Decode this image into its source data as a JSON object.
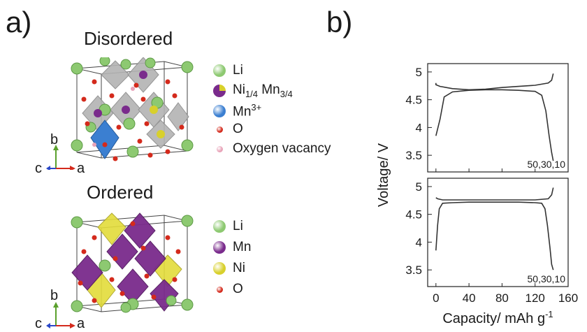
{
  "panel_a": {
    "label": "a)",
    "disordered": {
      "title": "Disordered",
      "legend": [
        {
          "label_parts": [
            [
              "Li",
              ""
            ]
          ],
          "color": "#8dc971"
        },
        {
          "label_parts": [
            [
              "Ni",
              ""
            ],
            [
              "1/4",
              "sub"
            ],
            [
              " Mn",
              ""
            ],
            [
              "3/4",
              "sub"
            ]
          ],
          "color": "#7a2b8c",
          "color2": "#d8d02c"
        },
        {
          "label_parts": [
            [
              "Mn",
              ""
            ],
            [
              "3+",
              "sup"
            ]
          ],
          "color": "#3b7fd1"
        },
        {
          "label_parts": [
            [
              "O",
              ""
            ]
          ],
          "color": "#d42a1c"
        },
        {
          "label_parts": [
            [
              "Oxygen vacancy",
              ""
            ]
          ],
          "color": "#e8a3b8"
        }
      ],
      "axes": {
        "b": "b",
        "c": "c",
        "a": "a"
      }
    },
    "ordered": {
      "title": "Ordered",
      "legend": [
        {
          "label_parts": [
            [
              "Li",
              ""
            ]
          ],
          "color": "#8dc971"
        },
        {
          "label_parts": [
            [
              "Mn",
              ""
            ]
          ],
          "color": "#7a2b8c"
        },
        {
          "label_parts": [
            [
              "Ni",
              ""
            ]
          ],
          "color": "#d8d02c"
        },
        {
          "label_parts": [
            [
              "O",
              ""
            ]
          ],
          "color": "#d42a1c"
        }
      ],
      "axes": {
        "b": "b",
        "c": "c",
        "a": "a"
      }
    }
  },
  "panel_b": {
    "label": "b)",
    "chart_data": {
      "type": "line",
      "ylabel": "Voltage/ V",
      "xlabel_main": "Capacity/ mAh g",
      "xlabel_sup": "-1",
      "xlim": [
        -10,
        160
      ],
      "xticks": [
        0,
        40,
        80,
        120,
        160
      ],
      "ylim": [
        3.2,
        5.15
      ],
      "yticks": [
        3.5,
        4,
        4.5,
        5
      ],
      "panels": [
        {
          "annotation": "50,30,10",
          "series": [
            {
              "x": [
                0,
                5,
                10,
                20,
                40,
                60,
                80,
                100,
                120,
                128,
                133,
                137,
                140,
                142
              ],
              "y": [
                3.85,
                4.15,
                4.55,
                4.64,
                4.67,
                4.68,
                4.68,
                4.67,
                4.65,
                4.58,
                4.3,
                3.85,
                3.55,
                3.4
              ]
            },
            {
              "x": [
                142,
                140,
                136,
                120,
                100,
                80,
                60,
                40,
                20,
                5,
                0,
                0
              ],
              "y": [
                4.97,
                4.85,
                4.8,
                4.76,
                4.74,
                4.72,
                4.69,
                4.68,
                4.7,
                4.74,
                4.77,
                4.8
              ]
            }
          ]
        },
        {
          "annotation": "50,30,10",
          "series": [
            {
              "x": [
                0,
                2,
                4,
                8,
                20,
                40,
                60,
                80,
                100,
                120,
                128,
                132,
                135,
                138,
                140,
                142
              ],
              "y": [
                3.85,
                4.3,
                4.6,
                4.7,
                4.71,
                4.72,
                4.72,
                4.72,
                4.72,
                4.71,
                4.7,
                4.6,
                4.3,
                3.9,
                3.6,
                3.5
              ]
            },
            {
              "x": [
                142,
                140,
                136,
                120,
                80,
                40,
                8,
                2,
                0
              ],
              "y": [
                4.98,
                4.85,
                4.78,
                4.76,
                4.76,
                4.76,
                4.76,
                4.78,
                4.8
              ]
            }
          ]
        }
      ]
    }
  }
}
